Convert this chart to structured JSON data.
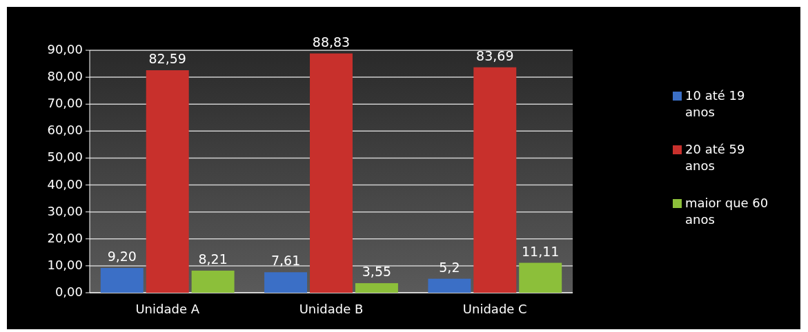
{
  "chart_data": {
    "type": "bar",
    "categories": [
      "Unidade A",
      "Unidade B",
      "Unidade C"
    ],
    "series": [
      {
        "name": "10 até 19 anos",
        "color": "#3b6fc6",
        "values": [
          9.2,
          7.61,
          5.2
        ],
        "value_labels": [
          "9,20",
          "7,61",
          "5,2"
        ]
      },
      {
        "name": "20 até 59 anos",
        "color": "#c8302c",
        "values": [
          82.59,
          88.83,
          83.69
        ],
        "value_labels": [
          "82,59",
          "88,83",
          "83,69"
        ]
      },
      {
        "name": "maior que 60 anos",
        "color": "#8cbf3a",
        "values": [
          8.21,
          3.55,
          11.11
        ],
        "value_labels": [
          "8,21",
          "3,55",
          "11,11"
        ]
      }
    ],
    "ylim": [
      0,
      90
    ],
    "yticks": [
      {
        "value": 0,
        "label": "0,00"
      },
      {
        "value": 10,
        "label": "10,00"
      },
      {
        "value": 20,
        "label": "20,00"
      },
      {
        "value": 30,
        "label": "30,00"
      },
      {
        "value": 40,
        "label": "40,00"
      },
      {
        "value": 50,
        "label": "50,00"
      },
      {
        "value": 60,
        "label": "60,00"
      },
      {
        "value": 70,
        "label": "70,00"
      },
      {
        "value": 80,
        "label": "80,00"
      },
      {
        "value": 90,
        "label": "90,00"
      }
    ],
    "grid": "y",
    "legend": "right"
  }
}
